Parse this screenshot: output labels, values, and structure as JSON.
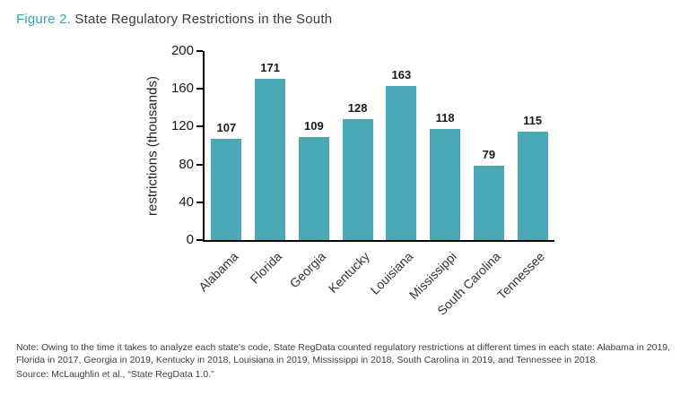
{
  "title": {
    "prefix": "Figure 2.",
    "text": " State Regulatory Restrictions in the South"
  },
  "chart_data": {
    "type": "bar",
    "title": "Figure 2. State Regulatory Restrictions in the South",
    "categories": [
      "Alabama",
      "Florida",
      "Georgia",
      "Kentucky",
      "Louisiana",
      "Mississippi",
      "South Carolina",
      "Tennessee"
    ],
    "values": [
      107,
      171,
      109,
      128,
      163,
      118,
      79,
      115
    ],
    "xlabel": "",
    "ylabel": "restrictions (thousands)",
    "ylim": [
      0,
      200
    ],
    "yticks": [
      0,
      40,
      80,
      120,
      160,
      200
    ],
    "bar_color": "#4aa9b7",
    "grid": false,
    "legend": "none"
  },
  "note": "Note: Owing to the time it takes to analyze each state's code, State RegData counted regulatory restrictions at different times in each state: Alabama in 2019, Florida in 2017, Georgia in 2019, Kentucky in 2018, Louisiana in 2019, Mississippi in 2018, South Carolina in 2019, and Tennessee in 2018.",
  "source": "Source: McLaughlin et al., “State RegData 1.0.”"
}
